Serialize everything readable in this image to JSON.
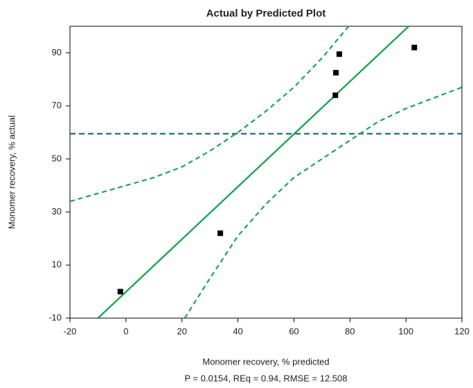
{
  "chart_data": {
    "type": "scatter",
    "title": "Actual by Predicted Plot",
    "x_label": "Monomer recovery, % predicted",
    "y_label": "Monomer recovery, % actual",
    "footnote": "P = 0.0154, REq = 0.94, RMSE = 12.508",
    "xlim": [
      -20,
      120
    ],
    "ylim": [
      -10,
      100
    ],
    "xticks": [
      -20,
      0,
      20,
      40,
      60,
      80,
      100,
      120
    ],
    "yticks": [
      -10,
      10,
      30,
      50,
      70,
      90
    ],
    "points": {
      "color": "#000000",
      "x": [
        -2,
        33.7,
        74.8,
        75,
        76.2,
        103
      ],
      "y": [
        0,
        22,
        74,
        82.5,
        89.5,
        92
      ]
    },
    "fit_line": {
      "color": "#1aa552",
      "x": [
        -10,
        101
      ],
      "y": [
        -10,
        100
      ]
    },
    "mean_line": {
      "color": "#1b6a82",
      "y": 59.5
    },
    "bands": [
      {
        "color": "#1aa552",
        "x": [
          -20,
          -10,
          0,
          10,
          20,
          30,
          40,
          50,
          60,
          70,
          79.5
        ],
        "y": [
          34,
          37,
          40,
          43,
          47,
          53,
          60,
          68,
          77,
          88,
          100
        ]
      },
      {
        "color": "#1aa552",
        "x": [
          21,
          30,
          40,
          50,
          60,
          70,
          80,
          90,
          100,
          110,
          120
        ],
        "y": [
          -10,
          5,
          21,
          33,
          43,
          50,
          57,
          64,
          69,
          73,
          77
        ]
      }
    ]
  }
}
